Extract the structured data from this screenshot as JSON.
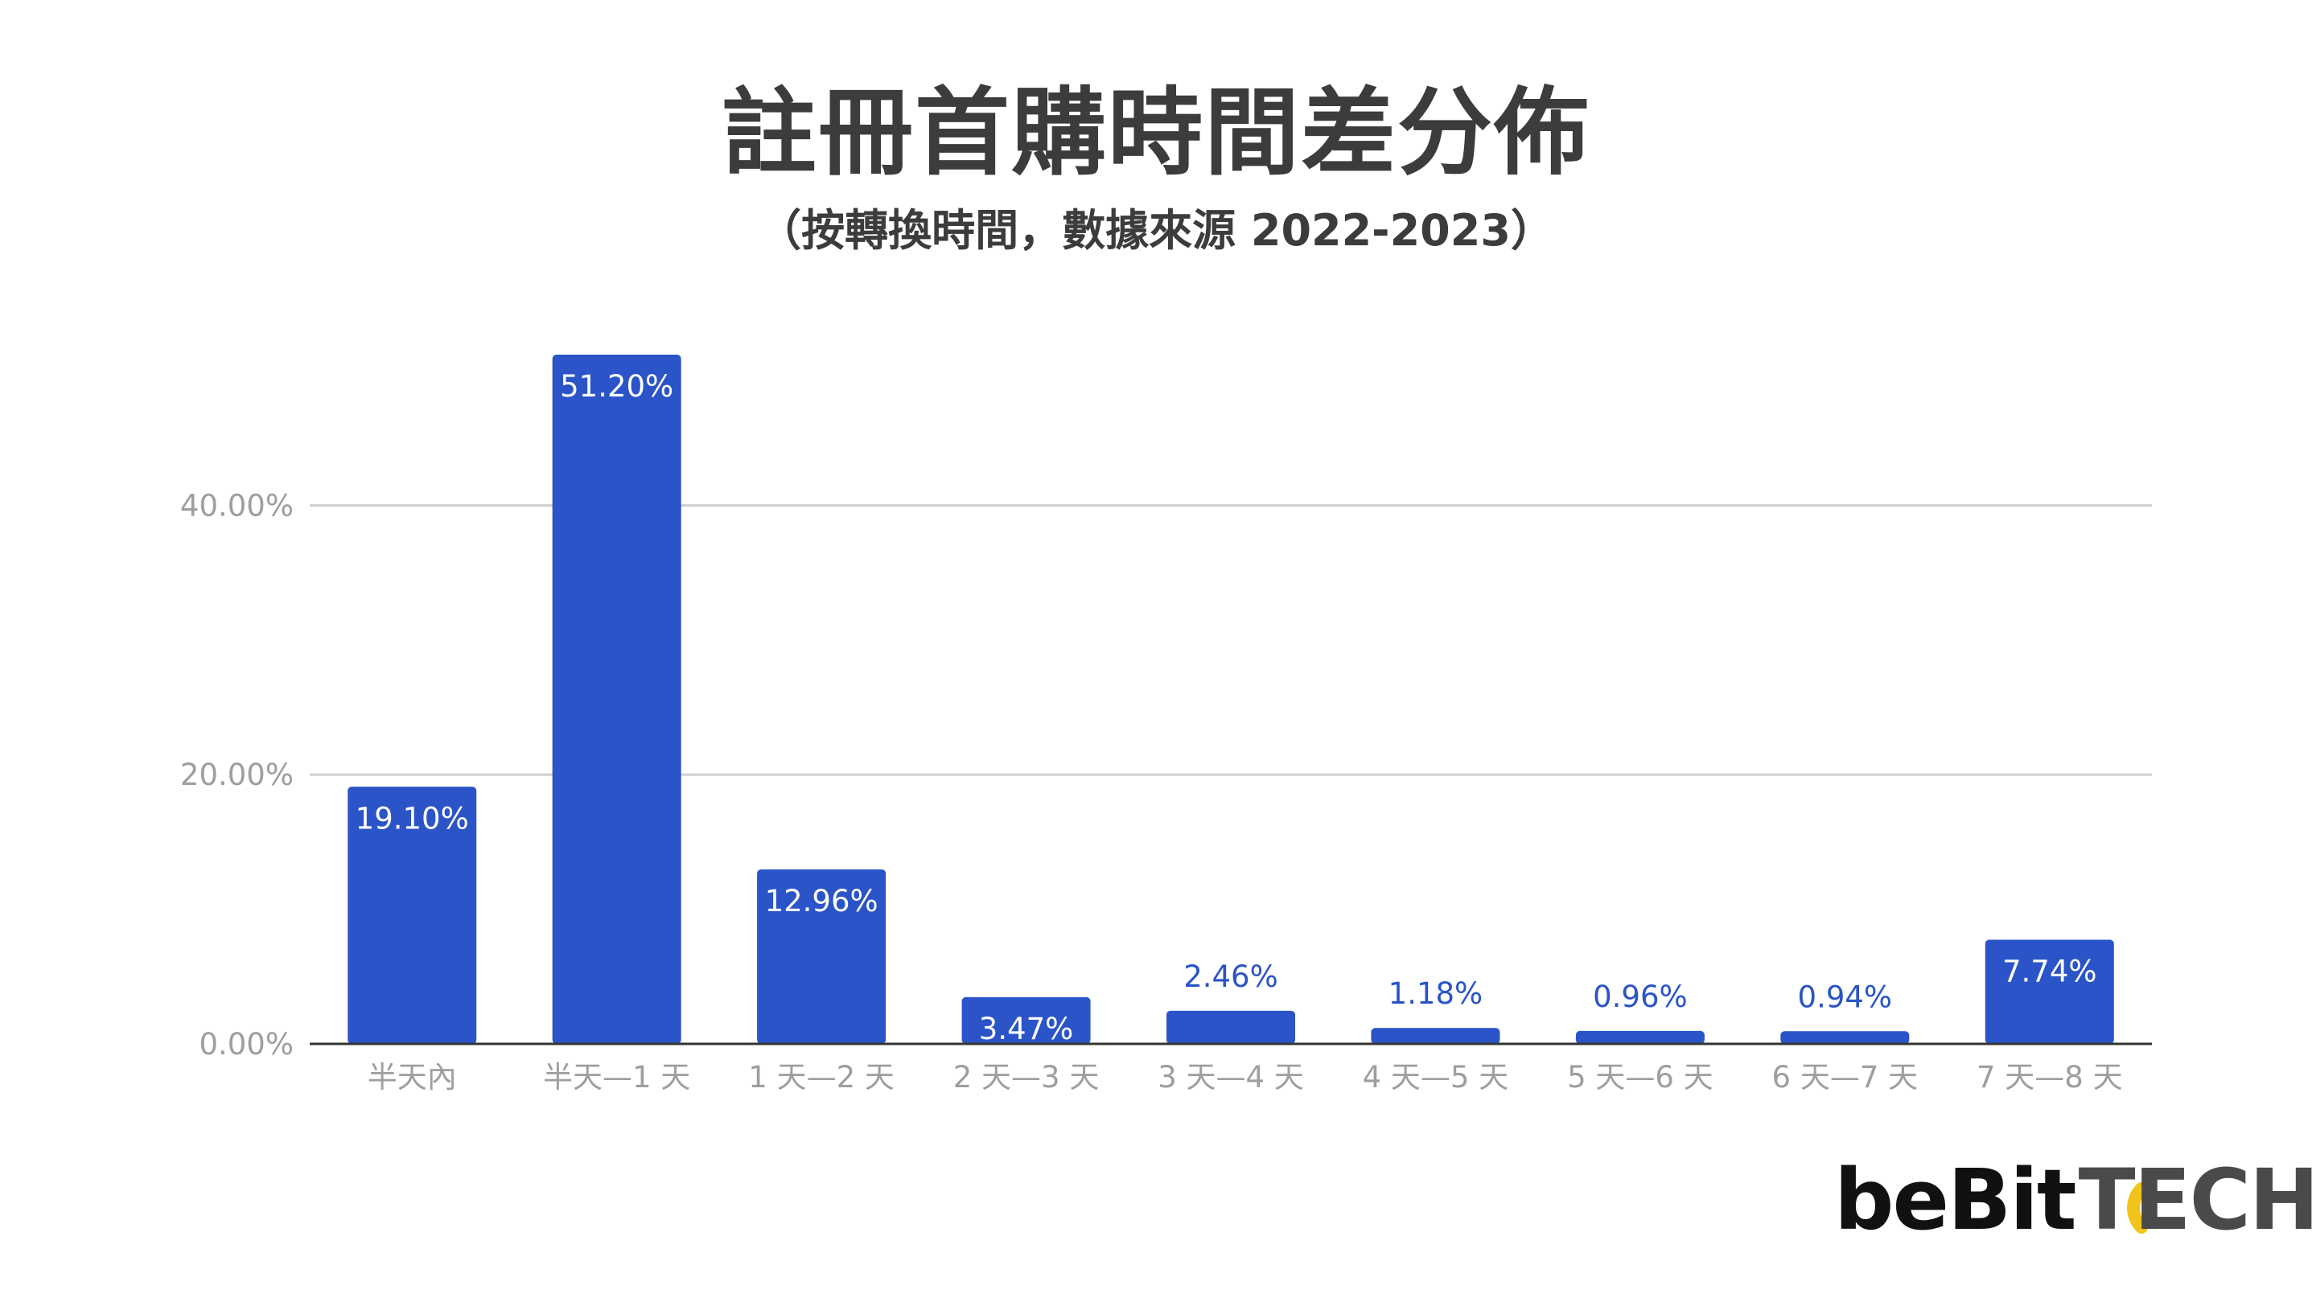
{
  "title": "註冊首購時間差分佈",
  "subtitle": "（按轉換時間，數據來源 2022-2023）",
  "logo": {
    "part1": "beBit",
    "part2": "TECH"
  },
  "colors": {
    "bar": "#2a54c7",
    "grid": "#d0d0d0",
    "axis": "#333333",
    "tick": "#9e9e9e",
    "label_outside": "#2a54c7",
    "label_inside": "#ffffff",
    "logo_accent": "#f0c419"
  },
  "chart_data": {
    "type": "bar",
    "categories": [
      "半天內",
      "半天—1 天",
      "1 天—2 天",
      "2 天—3 天",
      "3 天—4 天",
      "4 天—5 天",
      "5 天—6 天",
      "6 天—7 天",
      "7 天—8 天"
    ],
    "values": [
      19.1,
      51.2,
      12.96,
      3.47,
      2.46,
      1.18,
      0.96,
      0.94,
      7.74
    ],
    "data_labels": [
      "19.10%",
      "51.20%",
      "12.96%",
      "3.47%",
      "2.46%",
      "1.18%",
      "0.96%",
      "0.94%",
      "7.74%"
    ],
    "yticks": [
      0,
      20,
      40
    ],
    "ytick_labels": [
      "0.00%",
      "20.00%",
      "40.00%"
    ],
    "ylim": [
      0,
      51.2
    ],
    "grid": true,
    "legend": "none"
  }
}
